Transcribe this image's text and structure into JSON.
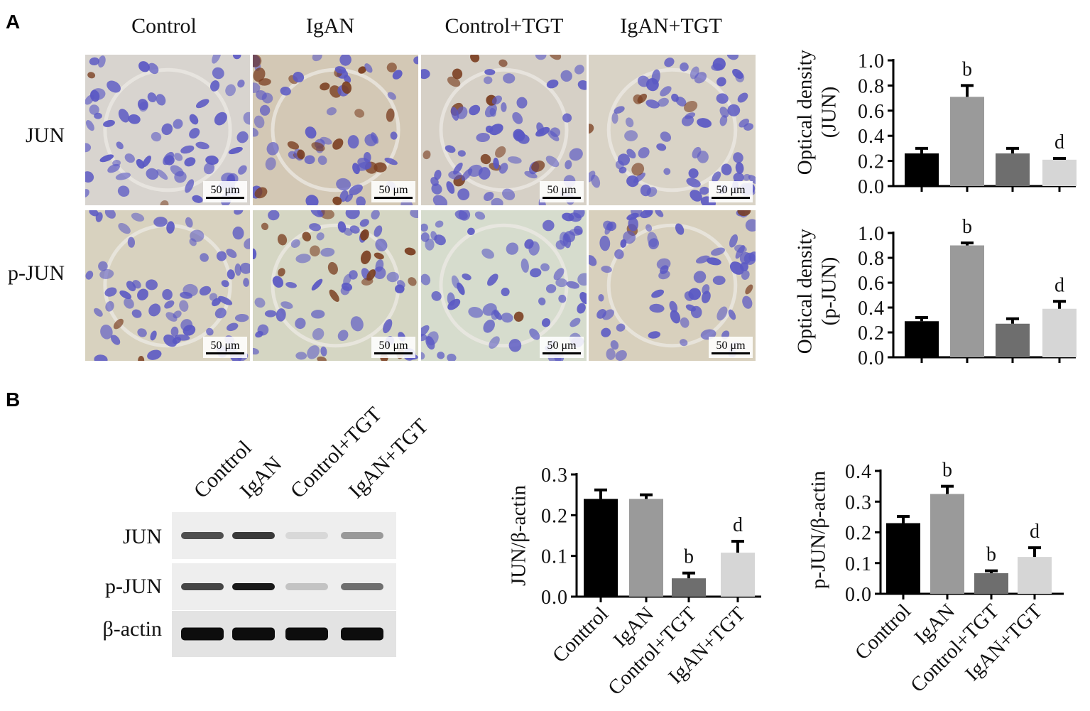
{
  "panel_labels": {
    "a": "A",
    "b": "B"
  },
  "micrographs": {
    "columns": [
      "Control",
      "IgAN",
      "Control+TGT",
      "IgAN+TGT"
    ],
    "rows": [
      "JUN",
      "p-JUN"
    ],
    "scale_bar_label": "50 μm",
    "colors": {
      "background": "#d9d2c3",
      "nucleus": "#5a58c4",
      "brown_nucleus": "#7a3e20",
      "membrane": "#eceae4"
    }
  },
  "western_blot": {
    "lane_labels": [
      "Conttrol",
      "IgAN",
      "Control+TGT",
      "IgAN+TGT"
    ],
    "rows": [
      {
        "label": "JUN",
        "intensity": [
          0.75,
          0.85,
          0.1,
          0.4
        ]
      },
      {
        "label": "p-JUN",
        "intensity": [
          0.8,
          1.0,
          0.2,
          0.6
        ]
      },
      {
        "label": "β-actin",
        "intensity": [
          1.0,
          1.0,
          1.0,
          1.0
        ]
      }
    ]
  },
  "chart_data": [
    {
      "type": "bar",
      "categories": [
        "Control",
        "IgAN",
        "Control+TGT",
        "IgAN+TGT"
      ],
      "values": [
        0.26,
        0.71,
        0.26,
        0.21
      ],
      "errors": [
        0.04,
        0.09,
        0.04,
        0.01
      ],
      "sig": [
        "",
        "b",
        "",
        "d"
      ],
      "ylabel": [
        "Optical density",
        "(JUN)"
      ],
      "ylim": [
        0,
        1.0
      ],
      "yticks": [
        "0.0",
        "0.2",
        "0.4",
        "0.6",
        "0.8",
        "1.0"
      ],
      "show_xlabels": false,
      "colors": [
        "#000000",
        "#9a9a9a",
        "#6e6e6e",
        "#d6d6d6"
      ]
    },
    {
      "type": "bar",
      "categories": [
        "Control",
        "IgAN",
        "Control+TGT",
        "IgAN+TGT"
      ],
      "values": [
        0.29,
        0.9,
        0.27,
        0.39
      ],
      "errors": [
        0.03,
        0.02,
        0.04,
        0.06
      ],
      "sig": [
        "",
        "b",
        "",
        "d"
      ],
      "ylabel": [
        "Optical density",
        "(p-JUN)"
      ],
      "ylim": [
        0,
        1.0
      ],
      "yticks": [
        "0.0",
        "0.2",
        "0.4",
        "0.6",
        "0.8",
        "1.0"
      ],
      "show_xlabels": false,
      "colors": [
        "#000000",
        "#9a9a9a",
        "#6e6e6e",
        "#d6d6d6"
      ]
    },
    {
      "type": "bar",
      "categories": [
        "Conttrol",
        "IgAN",
        "Control+TGT",
        "IgAN+TGT"
      ],
      "values": [
        0.24,
        0.24,
        0.045,
        0.108
      ],
      "errors": [
        0.022,
        0.01,
        0.013,
        0.028
      ],
      "sig": [
        "",
        "",
        "b",
        "d"
      ],
      "ylabel": [
        "JUN/β-actin"
      ],
      "ylim": [
        0,
        0.3
      ],
      "yticks": [
        "0.0",
        "0.1",
        "0.2",
        "0.3"
      ],
      "show_xlabels": true,
      "colors": [
        "#000000",
        "#9a9a9a",
        "#6e6e6e",
        "#d6d6d6"
      ]
    },
    {
      "type": "bar",
      "categories": [
        "Conttrol",
        "IgAN",
        "Control+TGT",
        "IgAN+TGT"
      ],
      "values": [
        0.23,
        0.325,
        0.067,
        0.12
      ],
      "errors": [
        0.022,
        0.025,
        0.008,
        0.03
      ],
      "sig": [
        "",
        "b",
        "b",
        "d"
      ],
      "ylabel": [
        "p-JUN/β-actin"
      ],
      "ylim": [
        0,
        0.4
      ],
      "yticks": [
        "0.0",
        "0.1",
        "0.2",
        "0.3",
        "0.4"
      ],
      "show_xlabels": true,
      "colors": [
        "#000000",
        "#9a9a9a",
        "#6e6e6e",
        "#d6d6d6"
      ]
    }
  ]
}
